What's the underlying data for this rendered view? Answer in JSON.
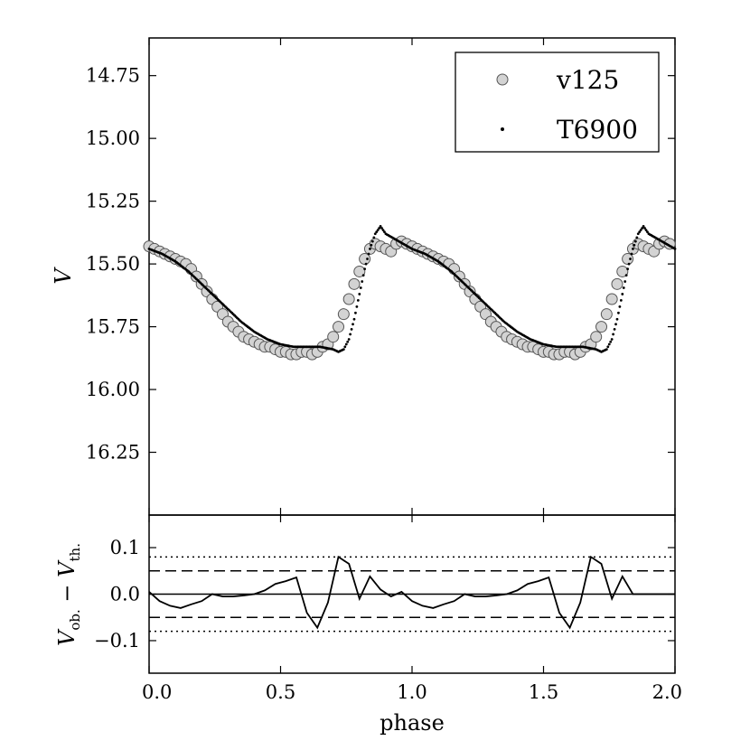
{
  "chart_data": [
    {
      "type": "scatter",
      "panel": "top",
      "title": "",
      "xlabel": "",
      "ylabel": "V",
      "xlim": [
        0.0,
        2.0
      ],
      "ylim": [
        16.5,
        14.6
      ],
      "y_inverted": true,
      "yticks": [
        14.75,
        15.0,
        15.25,
        15.5,
        15.75,
        16.0,
        16.25
      ],
      "ytick_labels": [
        "14.75",
        "15.00",
        "15.25",
        "15.50",
        "15.75",
        "16.00",
        "16.25"
      ],
      "legend": {
        "position": "top-right",
        "entries": [
          "v125",
          "T6900"
        ]
      },
      "series": [
        {
          "name": "v125",
          "marker": "circle",
          "color": "#d3d3d3",
          "edge_color": "#555555",
          "phase": [
            0.0,
            0.02,
            0.04,
            0.06,
            0.08,
            0.1,
            0.12,
            0.14,
            0.16,
            0.18,
            0.2,
            0.22,
            0.24,
            0.26,
            0.28,
            0.3,
            0.32,
            0.34,
            0.36,
            0.38,
            0.4,
            0.42,
            0.44,
            0.46,
            0.48,
            0.5,
            0.52,
            0.54,
            0.56,
            0.58,
            0.6,
            0.62,
            0.64,
            0.66,
            0.68,
            0.7,
            0.72,
            0.74,
            0.76,
            0.78,
            0.8,
            0.82,
            0.84,
            0.86,
            0.88,
            0.9,
            0.92,
            0.94,
            0.96,
            0.98
          ],
          "V": [
            15.43,
            15.44,
            15.45,
            15.46,
            15.47,
            15.48,
            15.49,
            15.5,
            15.52,
            15.55,
            15.58,
            15.61,
            15.64,
            15.67,
            15.7,
            15.73,
            15.75,
            15.77,
            15.79,
            15.8,
            15.81,
            15.82,
            15.83,
            15.83,
            15.84,
            15.85,
            15.85,
            15.86,
            15.86,
            15.85,
            15.85,
            15.86,
            15.85,
            15.83,
            15.82,
            15.79,
            15.75,
            15.7,
            15.64,
            15.58,
            15.53,
            15.48,
            15.44,
            15.42,
            15.43,
            15.44,
            15.45,
            15.42,
            15.41,
            15.42
          ]
        },
        {
          "name": "T6900",
          "marker": "dot",
          "color": "#000000",
          "phase": [
            0.0,
            0.05,
            0.1,
            0.15,
            0.2,
            0.25,
            0.3,
            0.35,
            0.4,
            0.45,
            0.5,
            0.55,
            0.6,
            0.65,
            0.7,
            0.72,
            0.74,
            0.76,
            0.78,
            0.8,
            0.82,
            0.84,
            0.86,
            0.88,
            0.9,
            0.95
          ],
          "V": [
            15.44,
            15.46,
            15.49,
            15.53,
            15.58,
            15.63,
            15.68,
            15.73,
            15.77,
            15.8,
            15.82,
            15.83,
            15.83,
            15.83,
            15.84,
            15.85,
            15.84,
            15.8,
            15.72,
            15.62,
            15.52,
            15.44,
            15.38,
            15.35,
            15.38,
            15.41
          ]
        }
      ]
    },
    {
      "type": "line",
      "panel": "bottom",
      "title": "",
      "xlabel": "phase",
      "ylabel": "V_ob. − V_th.",
      "ylabel_parts": {
        "v1": "V",
        "s1": "ob.",
        "minus": " − ",
        "v2": "V",
        "s2": "th."
      },
      "xlim": [
        0.0,
        2.0
      ],
      "ylim": [
        -0.17,
        0.17
      ],
      "xticks": [
        0.0,
        0.5,
        1.0,
        1.5,
        2.0
      ],
      "xtick_labels": [
        "0.0",
        "0.5",
        "1.0",
        "1.5",
        "2.0"
      ],
      "yticks": [
        0.1,
        0.0,
        -0.1
      ],
      "ytick_labels": [
        "0.1",
        "0.0",
        "−0.1"
      ],
      "reference_lines": [
        {
          "y": 0.0,
          "style": "solid"
        },
        {
          "y": 0.05,
          "style": "dashed"
        },
        {
          "y": -0.05,
          "style": "dashed"
        },
        {
          "y": 0.08,
          "style": "dotted"
        },
        {
          "y": -0.08,
          "style": "dotted"
        }
      ],
      "series": [
        {
          "name": "residual",
          "phase": [
            0.0,
            0.04,
            0.08,
            0.12,
            0.16,
            0.2,
            0.24,
            0.28,
            0.32,
            0.36,
            0.4,
            0.44,
            0.48,
            0.52,
            0.56,
            0.6,
            0.64,
            0.68,
            0.72,
            0.76,
            0.8,
            0.84,
            0.88,
            0.92,
            0.96,
            1.0,
            1.04,
            1.08,
            1.12,
            1.16,
            1.2,
            1.24,
            1.28,
            1.32,
            1.36,
            1.4,
            1.44,
            1.48,
            1.52,
            1.56,
            1.6,
            1.64,
            1.68,
            1.72,
            1.76,
            1.8,
            1.84,
            1.88,
            1.92,
            1.96,
            2.0
          ],
          "residual": [
            0.005,
            -0.015,
            -0.025,
            -0.03,
            -0.022,
            -0.015,
            0.0,
            -0.005,
            -0.005,
            -0.003,
            0.0,
            0.008,
            0.022,
            0.028,
            0.036,
            -0.04,
            -0.072,
            -0.018,
            0.08,
            0.065,
            -0.01,
            0.038,
            0.01,
            -0.005,
            0.005,
            -0.015,
            -0.025,
            -0.03,
            -0.022,
            -0.015,
            0.0,
            -0.005,
            -0.005,
            -0.003,
            0.0,
            0.008,
            0.022,
            0.028,
            0.036,
            -0.04,
            -0.072,
            -0.018,
            0.08,
            0.065,
            -0.01,
            0.038,
            0.0,
            0.0,
            0.0,
            0.0,
            0.0
          ]
        }
      ]
    }
  ]
}
